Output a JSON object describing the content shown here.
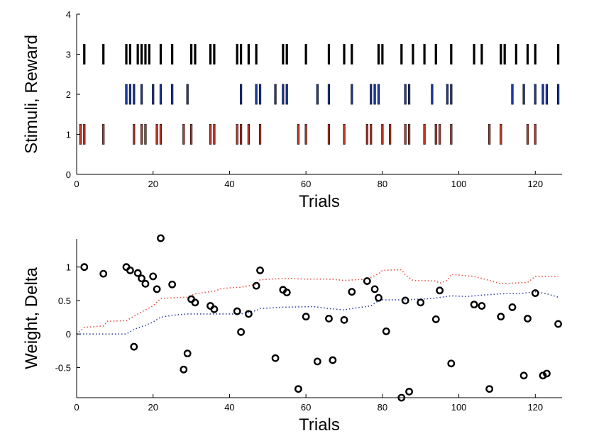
{
  "chart_data": [
    {
      "type": "event-raster",
      "xlabel": "Trials",
      "ylabel": "Stimuli, Reward",
      "xlim": [
        0,
        127
      ],
      "ylim": [
        0,
        4
      ],
      "xticks": [
        0,
        20,
        40,
        60,
        80,
        100,
        120
      ],
      "yticks": [
        0,
        1,
        2,
        3,
        4
      ],
      "grid": false,
      "series": [
        {
          "row": 3,
          "color": "#000000",
          "x": [
            2,
            7,
            13,
            14,
            16,
            17,
            18,
            19,
            22,
            25,
            30,
            31,
            35,
            36,
            42,
            43,
            45,
            47,
            54,
            55,
            60,
            66,
            70,
            72,
            79,
            80,
            85,
            88,
            91,
            94,
            98,
            104,
            106,
            111,
            112,
            115,
            118,
            120,
            126
          ]
        },
        {
          "row": 2,
          "color": "#1f3a9e",
          "x": [
            13,
            14,
            15,
            17,
            20,
            22,
            25,
            29,
            43,
            47,
            48,
            52,
            54,
            55,
            63,
            66,
            72,
            77,
            78,
            79,
            86,
            87,
            93,
            97,
            98,
            114,
            117,
            120,
            122,
            123,
            126
          ]
        },
        {
          "row": 1,
          "color": "#c0392b",
          "x": [
            1,
            2,
            7,
            15,
            17,
            18,
            21,
            22,
            28,
            30,
            35,
            36,
            42,
            43,
            45,
            48,
            58,
            60,
            66,
            70,
            76,
            77,
            80,
            82,
            86,
            87,
            91,
            94,
            95,
            98,
            108,
            111,
            118,
            120
          ]
        }
      ]
    },
    {
      "type": "scatter+line",
      "xlabel": "Trials",
      "ylabel": "Weight, Delta",
      "xlim": [
        0,
        127
      ],
      "ylim": [
        -0.95,
        1.42
      ],
      "xticks": [
        0,
        20,
        40,
        60,
        80,
        100,
        120
      ],
      "yticks": [
        -0.5,
        0,
        0.5,
        1
      ],
      "ytick_labels": [
        "-0.5",
        "0",
        "0.5",
        "1"
      ],
      "grid": false,
      "scatter": {
        "color": "#000000",
        "points": [
          [
            2,
            1.0
          ],
          [
            7,
            0.9
          ],
          [
            13,
            1.0
          ],
          [
            14,
            0.95
          ],
          [
            15,
            -0.19
          ],
          [
            16,
            0.91
          ],
          [
            17,
            0.83
          ],
          [
            18,
            0.75
          ],
          [
            20,
            0.86
          ],
          [
            21,
            0.67
          ],
          [
            22,
            1.43
          ],
          [
            25,
            0.74
          ],
          [
            28,
            -0.53
          ],
          [
            29,
            -0.29
          ],
          [
            30,
            0.52
          ],
          [
            31,
            0.47
          ],
          [
            35,
            0.42
          ],
          [
            36,
            0.37
          ],
          [
            42,
            0.34
          ],
          [
            43,
            0.03
          ],
          [
            45,
            0.3
          ],
          [
            47,
            0.72
          ],
          [
            48,
            0.95
          ],
          [
            52,
            -0.36
          ],
          [
            54,
            0.66
          ],
          [
            55,
            0.62
          ],
          [
            58,
            -0.82
          ],
          [
            60,
            0.26
          ],
          [
            63,
            -0.41
          ],
          [
            66,
            0.23
          ],
          [
            67,
            -0.39
          ],
          [
            70,
            0.21
          ],
          [
            72,
            0.63
          ],
          [
            76,
            0.79
          ],
          [
            78,
            0.67
          ],
          [
            79,
            0.54
          ],
          [
            81,
            0.04
          ],
          [
            85,
            -0.95
          ],
          [
            86,
            0.5
          ],
          [
            87,
            -0.86
          ],
          [
            90,
            0.47
          ],
          [
            94,
            0.22
          ],
          [
            95,
            0.65
          ],
          [
            98,
            -0.44
          ],
          [
            104,
            0.44
          ],
          [
            106,
            0.42
          ],
          [
            108,
            -0.82
          ],
          [
            111,
            0.26
          ],
          [
            114,
            0.4
          ],
          [
            117,
            -0.62
          ],
          [
            118,
            0.23
          ],
          [
            120,
            0.61
          ],
          [
            122,
            -0.62
          ],
          [
            123,
            -0.59
          ],
          [
            126,
            0.15
          ]
        ]
      },
      "lines": [
        {
          "color": "#e74c3c",
          "style": "dotted",
          "points": [
            [
              0,
              0
            ],
            [
              2,
              0.1
            ],
            [
              7,
              0.12
            ],
            [
              8,
              0.19
            ],
            [
              13,
              0.2
            ],
            [
              16,
              0.3
            ],
            [
              18,
              0.36
            ],
            [
              20,
              0.42
            ],
            [
              22,
              0.53
            ],
            [
              25,
              0.54
            ],
            [
              29,
              0.55
            ],
            [
              31,
              0.6
            ],
            [
              36,
              0.64
            ],
            [
              38,
              0.68
            ],
            [
              43,
              0.7
            ],
            [
              47,
              0.74
            ],
            [
              48,
              0.81
            ],
            [
              54,
              0.83
            ],
            [
              60,
              0.82
            ],
            [
              66,
              0.82
            ],
            [
              70,
              0.8
            ],
            [
              76,
              0.82
            ],
            [
              79,
              0.9
            ],
            [
              80,
              0.95
            ],
            [
              85,
              0.96
            ],
            [
              86,
              0.88
            ],
            [
              88,
              0.8
            ],
            [
              94,
              0.79
            ],
            [
              95,
              0.76
            ],
            [
              97,
              0.8
            ],
            [
              98,
              0.89
            ],
            [
              104,
              0.86
            ],
            [
              108,
              0.8
            ],
            [
              111,
              0.75
            ],
            [
              118,
              0.77
            ],
            [
              120,
              0.86
            ],
            [
              126,
              0.86
            ]
          ]
        },
        {
          "color": "#2c3ea6",
          "style": "dotted",
          "points": [
            [
              0,
              0
            ],
            [
              13,
              0
            ],
            [
              15,
              0.07
            ],
            [
              18,
              0.13
            ],
            [
              20,
              0.18
            ],
            [
              22,
              0.25
            ],
            [
              25,
              0.28
            ],
            [
              29,
              0.3
            ],
            [
              43,
              0.3
            ],
            [
              47,
              0.35
            ],
            [
              48,
              0.38
            ],
            [
              54,
              0.4
            ],
            [
              62,
              0.41
            ],
            [
              66,
              0.38
            ],
            [
              70,
              0.36
            ],
            [
              72,
              0.38
            ],
            [
              77,
              0.42
            ],
            [
              79,
              0.5
            ],
            [
              80,
              0.51
            ],
            [
              86,
              0.51
            ],
            [
              93,
              0.53
            ],
            [
              98,
              0.57
            ],
            [
              102,
              0.56
            ],
            [
              106,
              0.58
            ],
            [
              111,
              0.6
            ],
            [
              117,
              0.61
            ],
            [
              120,
              0.63
            ],
            [
              123,
              0.6
            ],
            [
              126,
              0.55
            ]
          ]
        }
      ]
    }
  ]
}
